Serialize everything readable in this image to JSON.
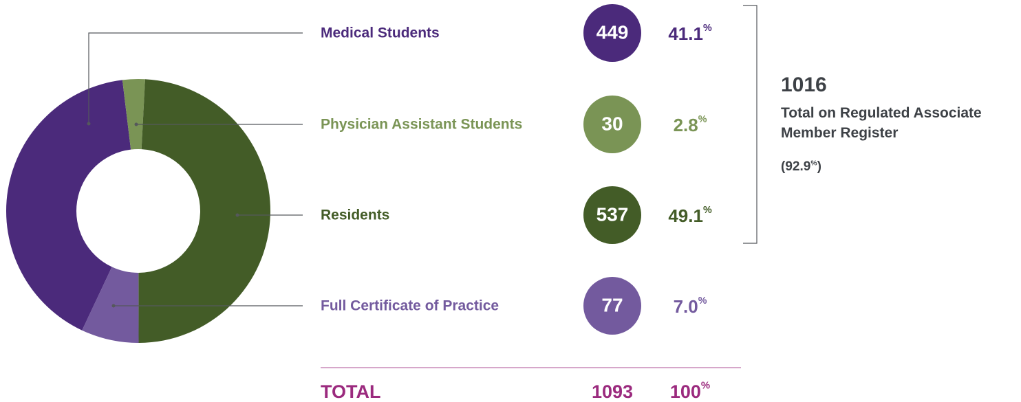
{
  "chart_data": {
    "type": "pie",
    "donut": true,
    "categories": [
      "Medical Students",
      "Physician Assistant Students",
      "Residents",
      "Full Certificate of Practice"
    ],
    "values": [
      449,
      30,
      537,
      77
    ],
    "percents": [
      41.1,
      2.8,
      49.1,
      7.0
    ],
    "percent_labels": [
      "41.1%",
      "2.8%",
      "49.1%",
      "7.0%"
    ],
    "colors": [
      "#4b2a7b",
      "#7a9455",
      "#435c27",
      "#735a9e"
    ],
    "total_label": "TOTAL",
    "total_value": 1093,
    "total_percent": 100,
    "total_percent_label": "100%",
    "total_color": "#9b2a7e",
    "register_total": 1016,
    "register_text": "Total on Regulated Associate Member Register",
    "register_share": 92.9,
    "register_share_label": "(92.9%)"
  }
}
